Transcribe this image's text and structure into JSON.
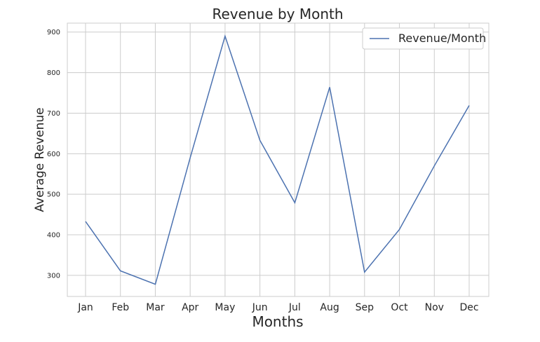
{
  "chart_data": {
    "type": "line",
    "title": "Revenue by Month",
    "xlabel": "Months",
    "ylabel": "Average Revenue",
    "categories": [
      "Jan",
      "Feb",
      "Mar",
      "Apr",
      "May",
      "Jun",
      "Jul",
      "Aug",
      "Sep",
      "Oct",
      "Nov",
      "Dec"
    ],
    "series": [
      {
        "name": "Revenue/Month",
        "values": [
          433,
          311,
          278,
          590,
          890,
          633,
          479,
          764,
          308,
          413,
          570,
          719
        ],
        "color": "#4c72b0"
      }
    ],
    "yticks": [
      300,
      400,
      500,
      600,
      700,
      800,
      900
    ],
    "ylim": [
      248,
      922
    ],
    "grid": true,
    "legend_position": "top-right",
    "colors": {
      "grid": "#cccccc",
      "frame": "#cccccc",
      "text": "#262626",
      "background": "#ffffff"
    }
  }
}
